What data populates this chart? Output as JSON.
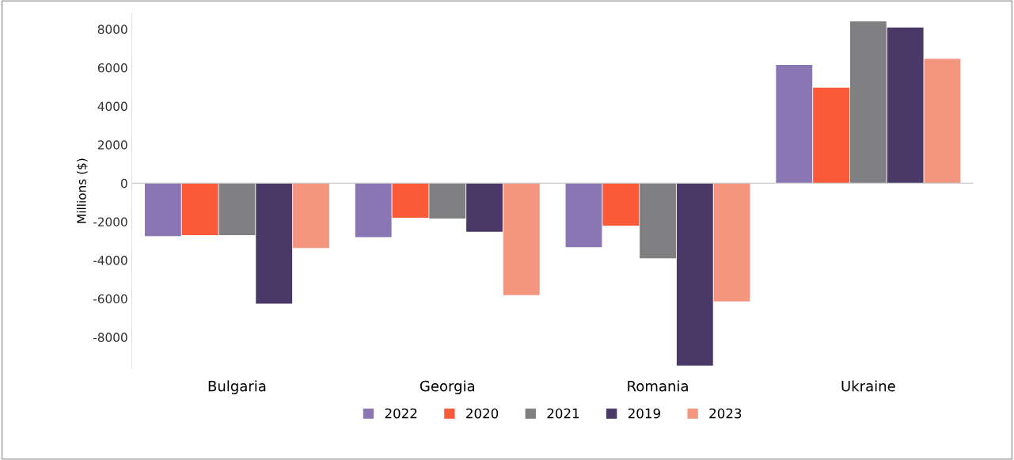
{
  "chart_data": {
    "type": "bar",
    "ylabel": "Millions ($)",
    "categories": [
      "Bulgaria",
      "Georgia",
      "Romania",
      "Ukraine"
    ],
    "series": [
      {
        "name": "2022",
        "color": "#8b76b4",
        "values": [
          -2750,
          -2800,
          -3330,
          6140
        ]
      },
      {
        "name": "2020",
        "color": "#fa5a37",
        "values": [
          -2700,
          -1790,
          -2200,
          4960
        ]
      },
      {
        "name": "2021",
        "color": "#808083",
        "values": [
          -2700,
          -1830,
          -3900,
          8410
        ]
      },
      {
        "name": "2019",
        "color": "#4a3866",
        "values": [
          -6260,
          -2520,
          -9470,
          8090
        ]
      },
      {
        "name": "2023",
        "color": "#f4957f",
        "values": [
          -3370,
          -5810,
          -6140,
          6460
        ]
      }
    ],
    "ylim": [
      -9600,
      8800
    ],
    "yticks": [
      -8000,
      -6000,
      -4000,
      -2000,
      0,
      2000,
      4000,
      6000,
      8000
    ],
    "ref_lines": [
      {
        "axis": "y",
        "value": 0,
        "color": "#cccccc"
      }
    ],
    "grid": false,
    "legend": "bottom"
  }
}
